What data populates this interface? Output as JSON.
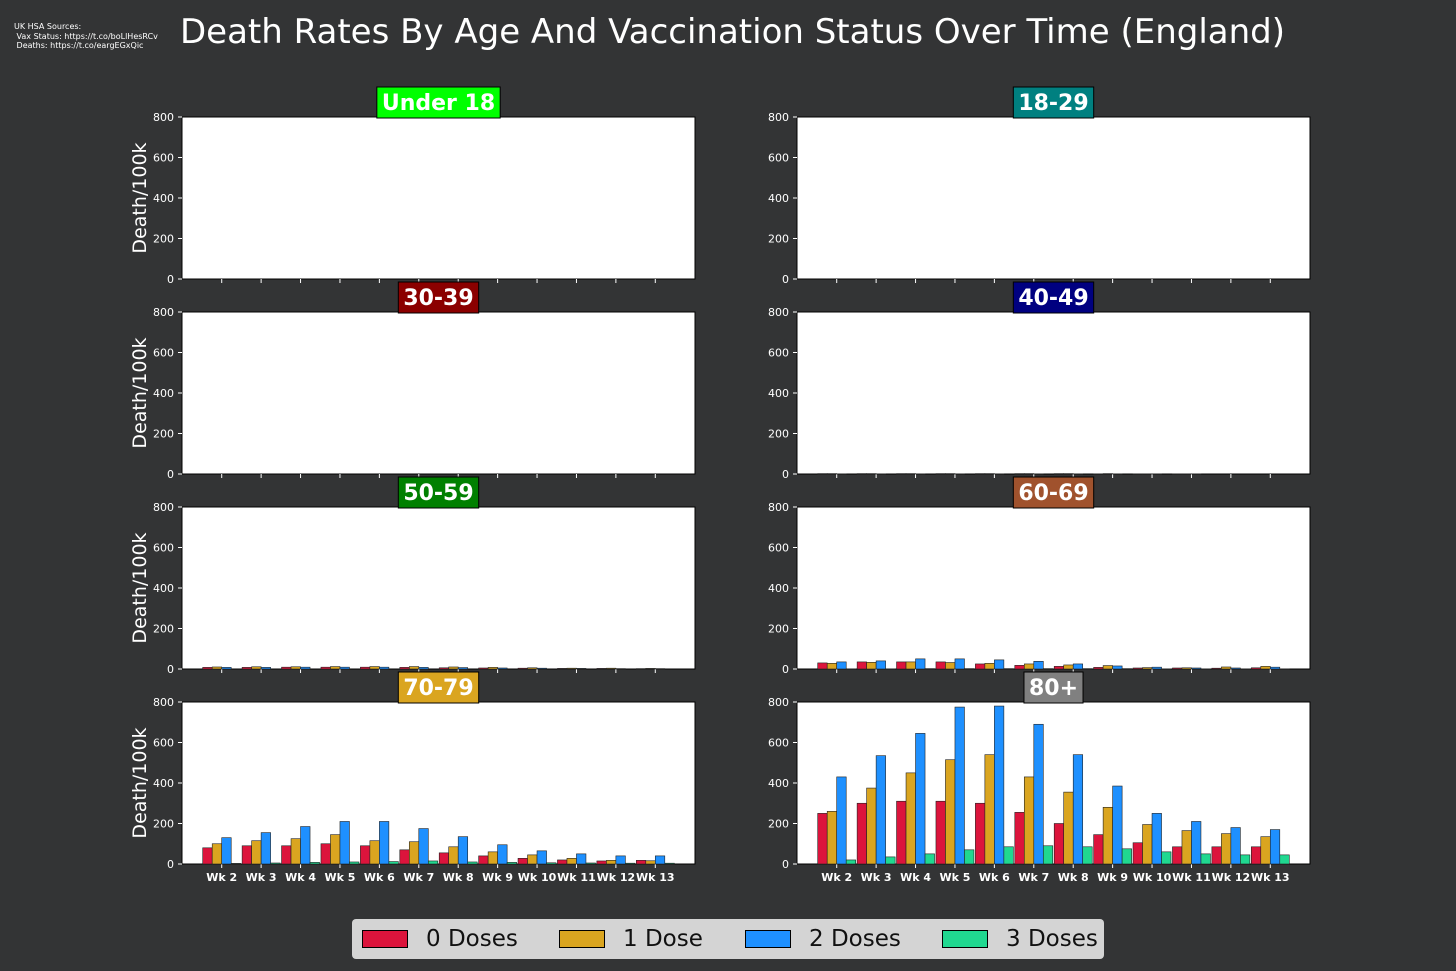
{
  "sources": {
    "line1": "UK HSA Sources:",
    "line2": " Vax Status: https://t.co/boLlHesRCv",
    "line3": " Deaths: https://t.co/eargEGxQic"
  },
  "title": "Death Rates By Age And Vaccination Status Over Time (England)",
  "legend": [
    {
      "label": "0 Doses",
      "color": "#dc143c"
    },
    {
      "label": "1 Dose",
      "color": "#daa520"
    },
    {
      "label": "2 Doses",
      "color": "#1e90ff"
    },
    {
      "label": "3 Doses",
      "color": "#20d890"
    }
  ],
  "chart_data": [
    {
      "type": "bar",
      "title": "Under 18",
      "title_bg": "#00ff00",
      "ylabel": "Death/100k",
      "ylim": [
        0,
        800
      ],
      "yticks": [
        0,
        200,
        400,
        600,
        800
      ],
      "categories": [
        "Wk 2",
        "Wk 3",
        "Wk 4",
        "Wk 5",
        "Wk 6",
        "Wk 7",
        "Wk 8",
        "Wk 9",
        "Wk 10",
        "Wk 11",
        "Wk 12",
        "Wk 13"
      ],
      "show_xticklabels": false,
      "series": [
        {
          "name": "0 Doses",
          "values": [
            0,
            0,
            0,
            0,
            0,
            0,
            0,
            0,
            0,
            0,
            0,
            0
          ]
        },
        {
          "name": "1 Dose",
          "values": [
            0,
            0,
            0,
            0,
            0,
            0,
            0,
            0,
            0,
            0,
            0,
            0
          ]
        },
        {
          "name": "2 Doses",
          "values": [
            0,
            0,
            0,
            0,
            0,
            0,
            0,
            0,
            0,
            0,
            0,
            0
          ]
        },
        {
          "name": "3 Doses",
          "values": [
            0,
            0,
            0,
            0,
            0,
            0,
            0,
            0,
            0,
            0,
            0,
            0
          ]
        }
      ]
    },
    {
      "type": "bar",
      "title": "18-29",
      "title_bg": "#008080",
      "ylabel": "",
      "ylim": [
        0,
        800
      ],
      "yticks": [
        0,
        200,
        400,
        600,
        800
      ],
      "categories": [
        "Wk 2",
        "Wk 3",
        "Wk 4",
        "Wk 5",
        "Wk 6",
        "Wk 7",
        "Wk 8",
        "Wk 9",
        "Wk 10",
        "Wk 11",
        "Wk 12",
        "Wk 13"
      ],
      "show_xticklabels": false,
      "series": [
        {
          "name": "0 Doses",
          "values": [
            0,
            0,
            0,
            0,
            0,
            0,
            0,
            0,
            0,
            0,
            0,
            0
          ]
        },
        {
          "name": "1 Dose",
          "values": [
            0,
            0,
            0,
            0,
            0,
            0,
            0,
            0,
            0,
            0,
            0,
            0
          ]
        },
        {
          "name": "2 Doses",
          "values": [
            0,
            0,
            0,
            0,
            0,
            0,
            0,
            0,
            0,
            0,
            0,
            0
          ]
        },
        {
          "name": "3 Doses",
          "values": [
            0,
            0,
            0,
            0,
            0,
            0,
            0,
            0,
            0,
            0,
            0,
            0
          ]
        }
      ]
    },
    {
      "type": "bar",
      "title": "30-39",
      "title_bg": "#8b0000",
      "ylabel": "Death/100k",
      "ylim": [
        0,
        800
      ],
      "yticks": [
        0,
        200,
        400,
        600,
        800
      ],
      "categories": [
        "Wk 2",
        "Wk 3",
        "Wk 4",
        "Wk 5",
        "Wk 6",
        "Wk 7",
        "Wk 8",
        "Wk 9",
        "Wk 10",
        "Wk 11",
        "Wk 12",
        "Wk 13"
      ],
      "show_xticklabels": false,
      "series": [
        {
          "name": "0 Doses",
          "values": [
            0,
            0,
            0,
            0,
            0,
            0,
            0,
            0,
            0,
            0,
            0,
            0
          ]
        },
        {
          "name": "1 Dose",
          "values": [
            0,
            0,
            0,
            0,
            0,
            0,
            0,
            0,
            0,
            0,
            0,
            0
          ]
        },
        {
          "name": "2 Doses",
          "values": [
            0,
            0,
            0,
            0,
            0,
            0,
            0,
            0,
            0,
            0,
            0,
            0
          ]
        },
        {
          "name": "3 Doses",
          "values": [
            0,
            0,
            0,
            0,
            0,
            0,
            0,
            0,
            0,
            0,
            0,
            0
          ]
        }
      ]
    },
    {
      "type": "bar",
      "title": "40-49",
      "title_bg": "#000080",
      "ylabel": "",
      "ylim": [
        0,
        800
      ],
      "yticks": [
        0,
        200,
        400,
        600,
        800
      ],
      "categories": [
        "Wk 2",
        "Wk 3",
        "Wk 4",
        "Wk 5",
        "Wk 6",
        "Wk 7",
        "Wk 8",
        "Wk 9",
        "Wk 10",
        "Wk 11",
        "Wk 12",
        "Wk 13"
      ],
      "show_xticklabels": false,
      "series": [
        {
          "name": "0 Doses",
          "values": [
            2,
            2,
            2,
            2,
            2,
            2,
            2,
            1,
            1,
            1,
            0,
            0
          ]
        },
        {
          "name": "1 Dose",
          "values": [
            2,
            2,
            2,
            2,
            2,
            2,
            2,
            2,
            1,
            1,
            0,
            0
          ]
        },
        {
          "name": "2 Doses",
          "values": [
            1,
            1,
            1,
            1,
            1,
            1,
            1,
            1,
            1,
            1,
            0,
            0
          ]
        },
        {
          "name": "3 Doses",
          "values": [
            0,
            0,
            0,
            0,
            0,
            0,
            0,
            0,
            0,
            0,
            0,
            0
          ]
        }
      ]
    },
    {
      "type": "bar",
      "title": "50-59",
      "title_bg": "#008000",
      "ylabel": "Death/100k",
      "ylim": [
        0,
        800
      ],
      "yticks": [
        0,
        200,
        400,
        600,
        800
      ],
      "categories": [
        "Wk 2",
        "Wk 3",
        "Wk 4",
        "Wk 5",
        "Wk 6",
        "Wk 7",
        "Wk 8",
        "Wk 9",
        "Wk 10",
        "Wk 11",
        "Wk 12",
        "Wk 13"
      ],
      "show_xticklabels": false,
      "series": [
        {
          "name": "0 Doses",
          "values": [
            8,
            8,
            9,
            9,
            9,
            8,
            6,
            5,
            4,
            3,
            3,
            2
          ]
        },
        {
          "name": "1 Dose",
          "values": [
            10,
            11,
            11,
            12,
            12,
            12,
            10,
            8,
            6,
            4,
            4,
            3
          ]
        },
        {
          "name": "2 Doses",
          "values": [
            8,
            8,
            9,
            9,
            9,
            8,
            7,
            5,
            4,
            3,
            2,
            2
          ]
        },
        {
          "name": "3 Doses",
          "values": [
            0,
            0,
            0,
            0,
            0,
            0,
            0,
            0,
            0,
            0,
            0,
            0
          ]
        }
      ]
    },
    {
      "type": "bar",
      "title": "60-69",
      "title_bg": "#a0522d",
      "ylabel": "",
      "ylim": [
        0,
        800
      ],
      "yticks": [
        0,
        200,
        400,
        600,
        800
      ],
      "categories": [
        "Wk 2",
        "Wk 3",
        "Wk 4",
        "Wk 5",
        "Wk 6",
        "Wk 7",
        "Wk 8",
        "Wk 9",
        "Wk 10",
        "Wk 11",
        "Wk 12",
        "Wk 13"
      ],
      "show_xticklabels": false,
      "series": [
        {
          "name": "0 Doses",
          "values": [
            30,
            35,
            35,
            35,
            25,
            18,
            13,
            8,
            5,
            5,
            4,
            6
          ]
        },
        {
          "name": "1 Dose",
          "values": [
            28,
            33,
            35,
            32,
            28,
            25,
            20,
            17,
            7,
            6,
            10,
            13
          ]
        },
        {
          "name": "2 Doses",
          "values": [
            35,
            40,
            50,
            50,
            45,
            38,
            25,
            15,
            9,
            5,
            5,
            9
          ]
        },
        {
          "name": "3 Doses",
          "values": [
            1,
            1,
            2,
            2,
            2,
            2,
            2,
            2,
            1,
            1,
            1,
            1
          ]
        }
      ]
    },
    {
      "type": "bar",
      "title": "70-79",
      "title_bg": "#daa520",
      "ylabel": "Death/100k",
      "ylim": [
        0,
        800
      ],
      "yticks": [
        0,
        200,
        400,
        600,
        800
      ],
      "categories": [
        "Wk 2",
        "Wk 3",
        "Wk 4",
        "Wk 5",
        "Wk 6",
        "Wk 7",
        "Wk 8",
        "Wk 9",
        "Wk 10",
        "Wk 11",
        "Wk 12",
        "Wk 13"
      ],
      "show_xticklabels": true,
      "series": [
        {
          "name": "0 Doses",
          "values": [
            80,
            90,
            90,
            100,
            90,
            70,
            55,
            40,
            28,
            20,
            15,
            18
          ]
        },
        {
          "name": "1 Dose",
          "values": [
            100,
            115,
            125,
            145,
            115,
            110,
            85,
            60,
            45,
            28,
            18,
            16
          ]
        },
        {
          "name": "2 Doses",
          "values": [
            130,
            155,
            185,
            210,
            210,
            175,
            135,
            95,
            65,
            50,
            40,
            40
          ]
        },
        {
          "name": "3 Doses",
          "values": [
            3,
            5,
            8,
            10,
            12,
            15,
            10,
            8,
            6,
            5,
            4,
            4
          ]
        }
      ]
    },
    {
      "type": "bar",
      "title": "80+",
      "title_bg": "#808080",
      "ylabel": "",
      "ylim": [
        0,
        800
      ],
      "yticks": [
        0,
        200,
        400,
        600,
        800
      ],
      "categories": [
        "Wk 2",
        "Wk 3",
        "Wk 4",
        "Wk 5",
        "Wk 6",
        "Wk 7",
        "Wk 8",
        "Wk 9",
        "Wk 10",
        "Wk 11",
        "Wk 12",
        "Wk 13"
      ],
      "show_xticklabels": true,
      "series": [
        {
          "name": "0 Doses",
          "values": [
            250,
            300,
            310,
            310,
            300,
            255,
            200,
            145,
            105,
            85,
            85,
            85
          ]
        },
        {
          "name": "1 Dose",
          "values": [
            260,
            375,
            450,
            515,
            540,
            430,
            355,
            280,
            195,
            165,
            150,
            135
          ]
        },
        {
          "name": "2 Doses",
          "values": [
            430,
            535,
            645,
            775,
            780,
            690,
            540,
            385,
            250,
            210,
            180,
            170
          ]
        },
        {
          "name": "3 Doses",
          "values": [
            20,
            35,
            50,
            70,
            85,
            90,
            85,
            75,
            60,
            50,
            45,
            45
          ]
        }
      ]
    }
  ]
}
